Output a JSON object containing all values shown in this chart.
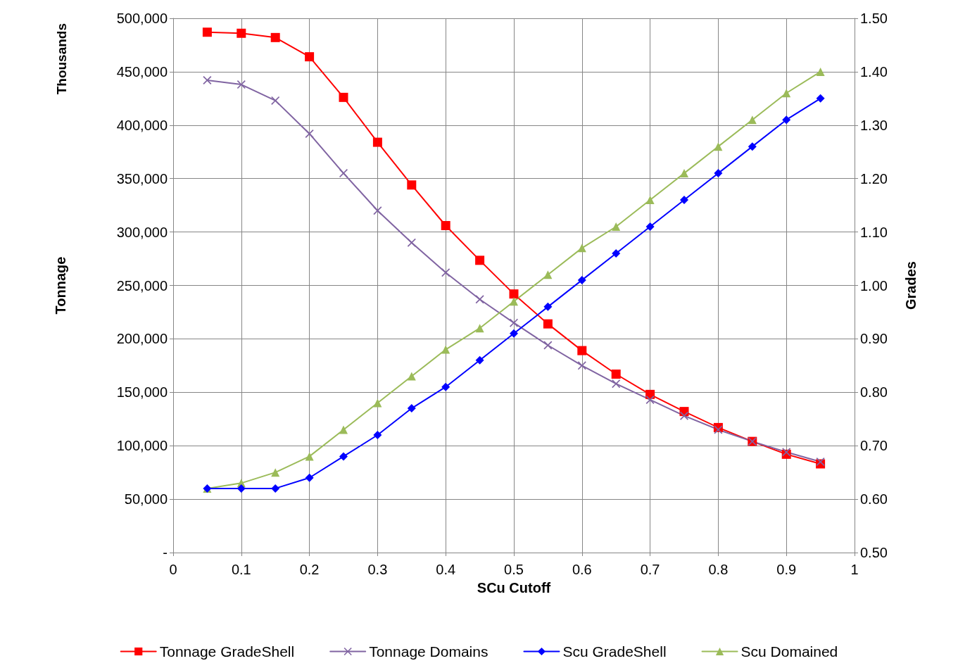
{
  "chart_data": {
    "type": "line",
    "xlabel": "SCu Cutoff",
    "ylabel": "Tonnage",
    "y2label": "Grades",
    "annotations": [
      "Thousands"
    ],
    "x": [
      0.05,
      0.1,
      0.15,
      0.2,
      0.25,
      0.3,
      0.35,
      0.4,
      0.45,
      0.5,
      0.55,
      0.6,
      0.65,
      0.7,
      0.75,
      0.8,
      0.85,
      0.9,
      0.95
    ],
    "series": [
      {
        "name": "Tonnage GradeShell",
        "color": "#ff0000",
        "marker": "square",
        "values": [
          487000,
          486000,
          482000,
          464000,
          426000,
          384000,
          344000,
          306000,
          273500,
          242000,
          214000,
          189000,
          167000,
          148000,
          132000,
          117000,
          104000,
          92000,
          83000
        ]
      },
      {
        "name": "Tonnage Domains",
        "color": "#8064a2",
        "marker": "cross",
        "values": [
          442000,
          438000,
          423000,
          392000,
          355000,
          320000,
          290000,
          262000,
          237000,
          215000,
          194000,
          175000,
          158000,
          143000,
          128000,
          115000,
          104000,
          94000,
          85000
        ]
      },
      {
        "name": "Scu GradeShell",
        "color": "#0000ff",
        "marker": "diamond",
        "axis": "y2",
        "values": [
          0.62,
          0.62,
          0.62,
          0.64,
          0.68,
          0.72,
          0.77,
          0.81,
          0.86,
          0.91,
          0.96,
          1.01,
          1.06,
          1.11,
          1.16,
          1.21,
          1.26,
          1.31,
          1.35
        ]
      },
      {
        "name": "Scu Domained",
        "color": "#9bbb59",
        "marker": "triangle",
        "axis": "y2",
        "values": [
          0.62,
          0.63,
          0.65,
          0.68,
          0.73,
          0.78,
          0.83,
          0.88,
          0.92,
          0.97,
          1.02,
          1.07,
          1.11,
          1.16,
          1.21,
          1.26,
          1.31,
          1.36,
          1.4
        ]
      }
    ],
    "xlim": [
      0,
      1
    ],
    "xticks": [
      0,
      0.1,
      0.2,
      0.3,
      0.4,
      0.5,
      0.6,
      0.7,
      0.8,
      0.9,
      1
    ],
    "ylim": [
      0,
      500000
    ],
    "yticks": [
      {
        "value": 0,
        "label": "-"
      },
      {
        "value": 50000,
        "label": "50,000"
      },
      {
        "value": 100000,
        "label": "100,000"
      },
      {
        "value": 150000,
        "label": "150,000"
      },
      {
        "value": 200000,
        "label": "200,000"
      },
      {
        "value": 250000,
        "label": "250,000"
      },
      {
        "value": 300000,
        "label": "300,000"
      },
      {
        "value": 350000,
        "label": "350,000"
      },
      {
        "value": 400000,
        "label": "400,000"
      },
      {
        "value": 450000,
        "label": "450,000"
      },
      {
        "value": 500000,
        "label": "500,000"
      }
    ],
    "y2lim": [
      0.5,
      1.5
    ],
    "y2ticks": [
      {
        "value": 0.5,
        "label": "0.50"
      },
      {
        "value": 0.6,
        "label": "0.60"
      },
      {
        "value": 0.7,
        "label": "0.70"
      },
      {
        "value": 0.8,
        "label": "0.80"
      },
      {
        "value": 0.9,
        "label": "0.90"
      },
      {
        "value": 1,
        "label": "1.00"
      },
      {
        "value": 1.1,
        "label": "1.10"
      },
      {
        "value": 1.2,
        "label": "1.20"
      },
      {
        "value": 1.3,
        "label": "1.30"
      },
      {
        "value": 1.4,
        "label": "1.40"
      },
      {
        "value": 1.5,
        "label": "1.50"
      }
    ],
    "grid": true,
    "legend": "bottom"
  }
}
